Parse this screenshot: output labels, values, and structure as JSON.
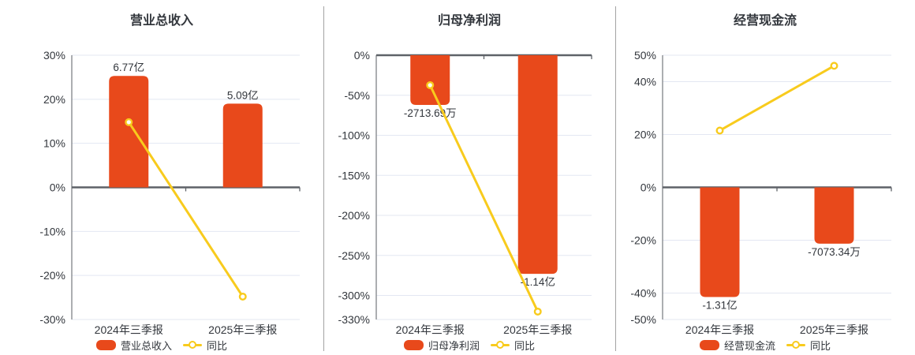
{
  "colors": {
    "bar": "#E8491B",
    "line": "#F8CB1D",
    "grid": "#E3E7F2",
    "axis_line": "#7F8287",
    "zero_line": "#5E6268",
    "text": "#33373D",
    "divider": "#A3A3A3",
    "marker_fill": "#FFFFFF"
  },
  "chart_data": [
    {
      "type": "bar+line",
      "title": "营业总收入",
      "categories": [
        "2024年三季报",
        "2025年三季报"
      ],
      "bar_series": {
        "name": "营业总收入",
        "value_labels": [
          "6.77亿",
          "5.09亿"
        ],
        "bar_display_pct": [
          25.3,
          19.0
        ],
        "label_position": "above"
      },
      "line_series": {
        "name": "同比",
        "values_pct": [
          14.8,
          -24.8
        ]
      },
      "y_ticks_pct": [
        30,
        20,
        10,
        0,
        -10,
        -20,
        -30
      ],
      "ylim_pct": [
        -30,
        30
      ],
      "grid": true,
      "legend_position": "bottom"
    },
    {
      "type": "bar+line",
      "title": "归母净利润",
      "categories": [
        "2024年三季报",
        "2025年三季报"
      ],
      "bar_series": {
        "name": "归母净利润",
        "value_labels": [
          "-2713.69万",
          "-1.14亿"
        ],
        "bar_display_pct": [
          -62,
          -273
        ],
        "label_position": "below"
      },
      "line_series": {
        "name": "同比",
        "values_pct": [
          -37.4,
          -320.1
        ]
      },
      "y_ticks_pct": [
        0,
        -50,
        -100,
        -150,
        -200,
        -250,
        -300,
        -330
      ],
      "ylim_pct": [
        -330,
        0
      ],
      "grid": true,
      "legend_position": "bottom"
    },
    {
      "type": "bar+line",
      "title": "经营现金流",
      "categories": [
        "2024年三季报",
        "2025年三季报"
      ],
      "bar_series": {
        "name": "经营现金流",
        "value_labels": [
          "-1.31亿",
          "-7073.34万"
        ],
        "bar_display_pct": [
          -41.5,
          -21.3
        ],
        "label_position": "below"
      },
      "line_series": {
        "name": "同比",
        "values_pct": [
          21.5,
          46.0
        ]
      },
      "y_ticks_pct": [
        50,
        40,
        20,
        0,
        -20,
        -40,
        -50
      ],
      "ylim_pct": [
        -50,
        50
      ],
      "grid": true,
      "legend_position": "bottom"
    }
  ]
}
